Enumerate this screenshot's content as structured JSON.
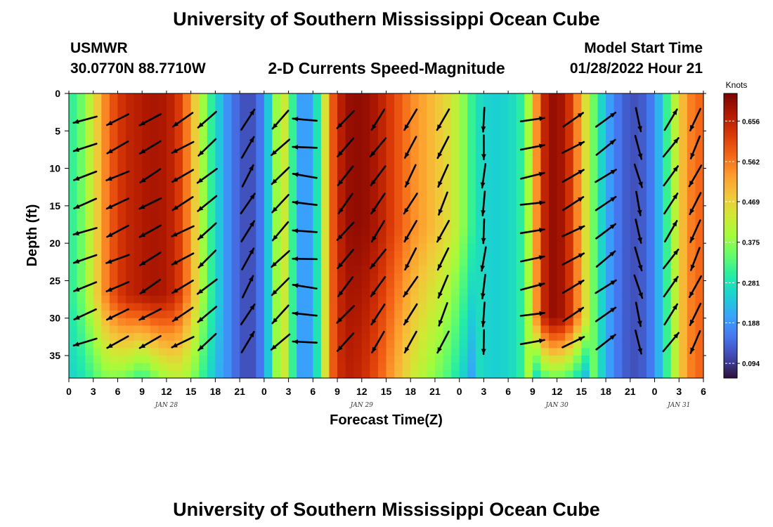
{
  "header": {
    "title": "University of Southern Mississippi Ocean Cube",
    "station": "USMWR",
    "coords": "30.0770N  88.7710W",
    "subtitle": "2-D Currents Speed-Magnitude",
    "model_start_label": "Model Start Time",
    "model_start_value": "01/28/2022 Hour 21"
  },
  "footer": {
    "title": "University of Southern Mississippi Ocean Cube"
  },
  "chart_data": {
    "type": "heatmap",
    "title": "2-D Currents Speed-Magnitude",
    "xlabel": "Forecast Time(Z)",
    "ylabel": "Depth (ft)",
    "x_range_hours": [
      0,
      78
    ],
    "y_range_ft": [
      0,
      38
    ],
    "x_ticks": [
      {
        "h": 0,
        "label": "0"
      },
      {
        "h": 3,
        "label": "3"
      },
      {
        "h": 6,
        "label": "6"
      },
      {
        "h": 9,
        "label": "9"
      },
      {
        "h": 12,
        "label": "12"
      },
      {
        "h": 15,
        "label": "15"
      },
      {
        "h": 18,
        "label": "18"
      },
      {
        "h": 21,
        "label": "21"
      },
      {
        "h": 24,
        "label": "0"
      },
      {
        "h": 27,
        "label": "3"
      },
      {
        "h": 30,
        "label": "6"
      },
      {
        "h": 33,
        "label": "9"
      },
      {
        "h": 36,
        "label": "12"
      },
      {
        "h": 39,
        "label": "15"
      },
      {
        "h": 42,
        "label": "18"
      },
      {
        "h": 45,
        "label": "21"
      },
      {
        "h": 48,
        "label": "0"
      },
      {
        "h": 51,
        "label": "3"
      },
      {
        "h": 54,
        "label": "6"
      },
      {
        "h": 57,
        "label": "9"
      },
      {
        "h": 60,
        "label": "12"
      },
      {
        "h": 63,
        "label": "15"
      },
      {
        "h": 66,
        "label": "18"
      },
      {
        "h": 69,
        "label": "21"
      },
      {
        "h": 72,
        "label": "0"
      },
      {
        "h": 75,
        "label": "3"
      },
      {
        "h": 78,
        "label": "6"
      }
    ],
    "y_ticks": [
      {
        "v": 0,
        "label": "0"
      },
      {
        "v": 5,
        "label": "5"
      },
      {
        "v": 10,
        "label": "10"
      },
      {
        "v": 15,
        "label": "15"
      },
      {
        "v": 20,
        "label": "20"
      },
      {
        "v": 25,
        "label": "25"
      },
      {
        "v": 30,
        "label": "30"
      },
      {
        "v": 35,
        "label": "35"
      }
    ],
    "date_labels": [
      {
        "h": 12,
        "label": "JAN 28"
      },
      {
        "h": 36,
        "label": "JAN 29"
      },
      {
        "h": 60,
        "label": "JAN 30"
      },
      {
        "h": 75,
        "label": "JAN 31"
      }
    ],
    "colorbar": {
      "title": "Knots",
      "range": [
        0.06,
        0.72
      ],
      "ticks": [
        0.656,
        0.562,
        0.469,
        0.375,
        0.281,
        0.188,
        0.094
      ],
      "tick_labels": [
        "0.656",
        "0.562",
        "0.469",
        "0.375",
        "0.281",
        "0.188",
        "0.094"
      ],
      "colors": [
        "#30123b",
        "#4145ab",
        "#4675ed",
        "#39a2fc",
        "#1bcfd4",
        "#24eca6",
        "#61fc6c",
        "#a4fc3b",
        "#d1e834",
        "#f3c63a",
        "#fe9b2d",
        "#f36315",
        "#d93806",
        "#b11901",
        "#7a0403"
      ]
    },
    "speed_profile": [
      {
        "h": 0,
        "s": 0.3
      },
      {
        "h": 1,
        "s": 0.32
      },
      {
        "h": 2,
        "s": 0.38
      },
      {
        "h": 3,
        "s": 0.44
      },
      {
        "h": 4,
        "s": 0.52
      },
      {
        "h": 5,
        "s": 0.58
      },
      {
        "h": 6,
        "s": 0.62
      },
      {
        "h": 7,
        "s": 0.65
      },
      {
        "h": 8,
        "s": 0.66
      },
      {
        "h": 9,
        "s": 0.67
      },
      {
        "h": 10,
        "s": 0.68
      },
      {
        "h": 11,
        "s": 0.68
      },
      {
        "h": 12,
        "s": 0.67
      },
      {
        "h": 13,
        "s": 0.65
      },
      {
        "h": 14,
        "s": 0.6
      },
      {
        "h": 15,
        "s": 0.52
      },
      {
        "h": 16,
        "s": 0.43
      },
      {
        "h": 17,
        "s": 0.34
      },
      {
        "h": 18,
        "s": 0.27
      },
      {
        "h": 19,
        "s": 0.21
      },
      {
        "h": 20,
        "s": 0.16
      },
      {
        "h": 21,
        "s": 0.13
      },
      {
        "h": 22,
        "s": 0.11
      },
      {
        "h": 23,
        "s": 0.13
      },
      {
        "h": 24,
        "s": 0.18
      },
      {
        "h": 25,
        "s": 0.3
      },
      {
        "h": 26,
        "s": 0.46
      },
      {
        "h": 27,
        "s": 0.4
      },
      {
        "h": 28,
        "s": 0.22
      },
      {
        "h": 29,
        "s": 0.18
      },
      {
        "h": 30,
        "s": 0.22
      },
      {
        "h": 31,
        "s": 0.34
      },
      {
        "h": 32,
        "s": 0.55
      },
      {
        "h": 33,
        "s": 0.64
      },
      {
        "h": 34,
        "s": 0.69
      },
      {
        "h": 35,
        "s": 0.7
      },
      {
        "h": 36,
        "s": 0.7
      },
      {
        "h": 37,
        "s": 0.69
      },
      {
        "h": 38,
        "s": 0.67
      },
      {
        "h": 39,
        "s": 0.64
      },
      {
        "h": 40,
        "s": 0.61
      },
      {
        "h": 41,
        "s": 0.58
      },
      {
        "h": 42,
        "s": 0.55
      },
      {
        "h": 43,
        "s": 0.53
      },
      {
        "h": 44,
        "s": 0.51
      },
      {
        "h": 45,
        "s": 0.49
      },
      {
        "h": 46,
        "s": 0.47
      },
      {
        "h": 47,
        "s": 0.44
      },
      {
        "h": 48,
        "s": 0.4
      },
      {
        "h": 49,
        "s": 0.34
      },
      {
        "h": 50,
        "s": 0.28
      },
      {
        "h": 51,
        "s": 0.26
      },
      {
        "h": 52,
        "s": 0.25
      },
      {
        "h": 53,
        "s": 0.25
      },
      {
        "h": 54,
        "s": 0.26
      },
      {
        "h": 55,
        "s": 0.28
      },
      {
        "h": 56,
        "s": 0.32
      },
      {
        "h": 57,
        "s": 0.46
      },
      {
        "h": 58,
        "s": 0.62
      },
      {
        "h": 59,
        "s": 0.69
      },
      {
        "h": 60,
        "s": 0.7
      },
      {
        "h": 61,
        "s": 0.67
      },
      {
        "h": 62,
        "s": 0.6
      },
      {
        "h": 63,
        "s": 0.5
      },
      {
        "h": 64,
        "s": 0.4
      },
      {
        "h": 65,
        "s": 0.3
      },
      {
        "h": 66,
        "s": 0.22
      },
      {
        "h": 67,
        "s": 0.17
      },
      {
        "h": 68,
        "s": 0.14
      },
      {
        "h": 69,
        "s": 0.12
      },
      {
        "h": 70,
        "s": 0.12
      },
      {
        "h": 71,
        "s": 0.14
      },
      {
        "h": 72,
        "s": 0.18
      },
      {
        "h": 73,
        "s": 0.26
      },
      {
        "h": 74,
        "s": 0.36
      },
      {
        "h": 75,
        "s": 0.46
      },
      {
        "h": 76,
        "s": 0.54
      },
      {
        "h": 77,
        "s": 0.57
      },
      {
        "h": 78,
        "s": 0.58
      }
    ],
    "vector_columns": [
      {
        "h": 2,
        "angle": -160
      },
      {
        "h": 6,
        "angle": -155
      },
      {
        "h": 10,
        "angle": -150
      },
      {
        "h": 14,
        "angle": -150
      },
      {
        "h": 17,
        "angle": -140
      },
      {
        "h": 22,
        "angle": 60
      },
      {
        "h": 26,
        "angle": -135
      },
      {
        "h": 29,
        "angle": 175
      },
      {
        "h": 34,
        "angle": -130
      },
      {
        "h": 38,
        "angle": -125
      },
      {
        "h": 42,
        "angle": -120
      },
      {
        "h": 46,
        "angle": -115
      },
      {
        "h": 51,
        "angle": -95
      },
      {
        "h": 57,
        "angle": 10
      },
      {
        "h": 62,
        "angle": 30
      },
      {
        "h": 66,
        "angle": 35
      },
      {
        "h": 70,
        "angle": -75
      },
      {
        "h": 74,
        "angle": 55
      },
      {
        "h": 77,
        "angle": -115
      }
    ],
    "vector_depths": [
      3.5,
      7.2,
      11,
      14.7,
      18.4,
      22.1,
      25.8,
      29.5,
      33.2
    ]
  }
}
